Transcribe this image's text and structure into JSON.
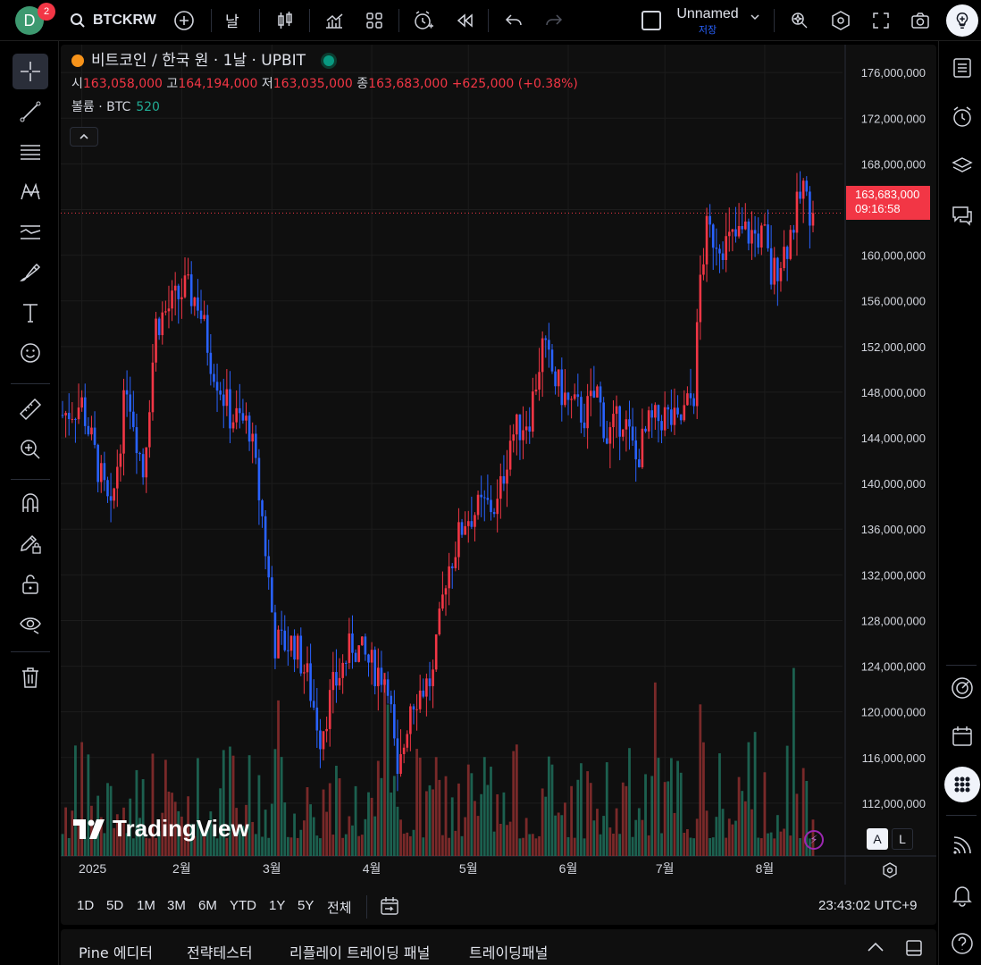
{
  "topbar": {
    "avatar_letter": "D",
    "notification_count": "2",
    "symbol": "BTCKRW",
    "interval": "날",
    "layout_name": "Unnamed",
    "layout_status": "저장"
  },
  "legend": {
    "title": "비트코인 / 한국 원 · 1날 · UPBIT",
    "open_label": "시",
    "open": "163,058,000",
    "high_label": "고",
    "high": "164,194,000",
    "low_label": "저",
    "low": "163,035,000",
    "close_label": "종",
    "close": "163,683,000",
    "change": "+625,000 (+0.38%)",
    "volume_label": "볼륨 · BTC",
    "volume_value": "520"
  },
  "price_tag": {
    "price": "163,683,000",
    "countdown": "09:16:58"
  },
  "colors": {
    "up": "#f23645",
    "down": "#2962ff",
    "vol_up": "#1e6e5a",
    "vol_down": "#8c2e2e",
    "bg": "#0f0f0f",
    "accent": "#2962ff"
  },
  "axis_toggles": {
    "auto": "A",
    "log": "L"
  },
  "watermark": "TradingView",
  "ranges": [
    "1D",
    "5D",
    "1M",
    "3M",
    "6M",
    "YTD",
    "1Y",
    "5Y",
    "전체"
  ],
  "clock": "23:43:02 UTC+9",
  "bottom_tabs": [
    "Pine 에디터",
    "전략테스터",
    "리플레이 트레이딩 패널",
    "트레이딩패널"
  ],
  "chart_data": {
    "type": "candlestick",
    "title": "비트코인 / 한국 원 · 1날 · UPBIT",
    "y_ticks": [
      "176,000,000",
      "172,000,000",
      "168,000,000",
      "164,000,000",
      "160,000,000",
      "156,000,000",
      "152,000,000",
      "148,000,000",
      "144,000,000",
      "140,000,000",
      "136,000,000",
      "132,000,000",
      "128,000,000",
      "124,000,000",
      "120,000,000",
      "116,000,000",
      "112,000,000"
    ],
    "ylim": [
      108000000,
      177500000
    ],
    "x_ticks": [
      "2025",
      "2월",
      "3월",
      "4월",
      "5월",
      "6월",
      "7월",
      "8월"
    ],
    "close_trajectory": [
      {
        "date": "2024-12-26",
        "close": 146000000
      },
      {
        "date": "2025-01-01",
        "close": 147000000
      },
      {
        "date": "2025-01-10",
        "close": 137000000
      },
      {
        "date": "2025-01-15",
        "close": 149000000
      },
      {
        "date": "2025-01-20",
        "close": 141000000
      },
      {
        "date": "2025-01-24",
        "close": 154000000
      },
      {
        "date": "2025-02-02",
        "close": 157000000
      },
      {
        "date": "2025-02-06",
        "close": 156000000
      },
      {
        "date": "2025-02-10",
        "close": 151000000
      },
      {
        "date": "2025-02-16",
        "close": 146000000
      },
      {
        "date": "2025-02-22",
        "close": 145000000
      },
      {
        "date": "2025-02-26",
        "close": 137000000
      },
      {
        "date": "2025-03-02",
        "close": 126000000
      },
      {
        "date": "2025-03-08",
        "close": 126000000
      },
      {
        "date": "2025-03-12",
        "close": 123000000
      },
      {
        "date": "2025-03-16",
        "close": 118000000
      },
      {
        "date": "2025-03-20",
        "close": 122000000
      },
      {
        "date": "2025-03-26",
        "close": 126000000
      },
      {
        "date": "2025-04-01",
        "close": 124000000
      },
      {
        "date": "2025-04-06",
        "close": 123000000
      },
      {
        "date": "2025-04-09",
        "close": 113500000
      },
      {
        "date": "2025-04-13",
        "close": 121000000
      },
      {
        "date": "2025-04-20",
        "close": 123000000
      },
      {
        "date": "2025-04-24",
        "close": 132000000
      },
      {
        "date": "2025-04-30",
        "close": 137000000
      },
      {
        "date": "2025-05-06",
        "close": 138000000
      },
      {
        "date": "2025-05-10",
        "close": 138000000
      },
      {
        "date": "2025-05-14",
        "close": 144000000
      },
      {
        "date": "2025-05-20",
        "close": 146000000
      },
      {
        "date": "2025-05-24",
        "close": 152000000
      },
      {
        "date": "2025-05-28",
        "close": 149000000
      },
      {
        "date": "2025-06-01",
        "close": 147000000
      },
      {
        "date": "2025-06-06",
        "close": 146000000
      },
      {
        "date": "2025-06-10",
        "close": 148000000
      },
      {
        "date": "2025-06-13",
        "close": 144000000
      },
      {
        "date": "2025-06-18",
        "close": 146000000
      },
      {
        "date": "2025-06-22",
        "close": 142000000
      },
      {
        "date": "2025-06-26",
        "close": 145000000
      },
      {
        "date": "2025-07-01",
        "close": 146000000
      },
      {
        "date": "2025-07-05",
        "close": 145000000
      },
      {
        "date": "2025-07-10",
        "close": 148000000
      },
      {
        "date": "2025-07-12",
        "close": 158000000
      },
      {
        "date": "2025-07-14",
        "close": 162000000
      },
      {
        "date": "2025-07-20",
        "close": 161000000
      },
      {
        "date": "2025-07-26",
        "close": 162000000
      },
      {
        "date": "2025-08-01",
        "close": 161500000
      },
      {
        "date": "2025-08-03",
        "close": 158000000
      },
      {
        "date": "2025-08-08",
        "close": 161000000
      },
      {
        "date": "2025-08-13",
        "close": 166000000
      },
      {
        "date": "2025-08-14",
        "close": 164500000
      },
      {
        "date": "2025-08-16",
        "close": 163683000
      }
    ],
    "last_price": 163683000,
    "volume_max_btc": 9000
  }
}
